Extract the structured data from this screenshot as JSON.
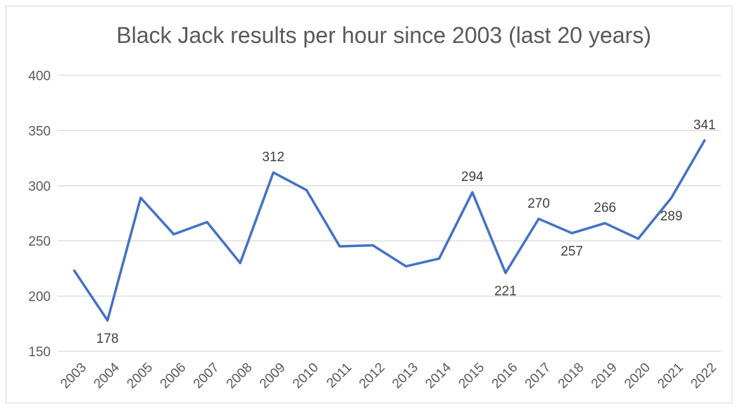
{
  "chart_data": {
    "type": "line",
    "title": "Black Jack results per hour since 2003 (last 20 years)",
    "xlabel": "",
    "ylabel": "",
    "categories": [
      "2003",
      "2004",
      "2005",
      "2006",
      "2007",
      "2008",
      "2009",
      "2010",
      "2011",
      "2012",
      "2013",
      "2014",
      "2015",
      "2016",
      "2017",
      "2018",
      "2019",
      "2020",
      "2021",
      "2022"
    ],
    "series": [
      {
        "values": [
          223,
          178,
          289,
          256,
          267,
          230,
          312,
          296,
          245,
          246,
          227,
          234,
          294,
          221,
          270,
          257,
          266,
          252,
          289,
          341
        ]
      }
    ],
    "data_labels": [
      {
        "category": "2004",
        "text": "178",
        "position": "below"
      },
      {
        "category": "2009",
        "text": "312",
        "position": "above"
      },
      {
        "category": "2015",
        "text": "294",
        "position": "above"
      },
      {
        "category": "2016",
        "text": "221",
        "position": "below"
      },
      {
        "category": "2017",
        "text": "270",
        "position": "above"
      },
      {
        "category": "2018",
        "text": "257",
        "position": "below"
      },
      {
        "category": "2019",
        "text": "266",
        "position": "above"
      },
      {
        "category": "2021",
        "text": "289",
        "position": "below"
      },
      {
        "category": "2022",
        "text": "341",
        "position": "above"
      }
    ],
    "ylim": [
      150,
      400
    ],
    "yticks": [
      150,
      200,
      250,
      300,
      350,
      400
    ],
    "grid": true,
    "line_color": "#4472c4",
    "grid_color": "#d9d9d9"
  }
}
